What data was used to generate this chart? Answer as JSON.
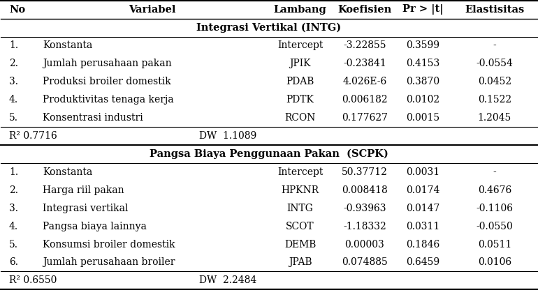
{
  "header": [
    "No",
    "Variabel",
    "Lambang",
    "Koefisien",
    "Pr > |t|",
    "Elastisitas"
  ],
  "section1_title": "Integrasi Vertikal (INTG)",
  "section1_rows": [
    [
      "1.",
      "Konstanta",
      "Intercept",
      "-3.22855",
      "0.3599",
      "-"
    ],
    [
      "2.",
      "Jumlah perusahaan pakan",
      "JPIK",
      "-0.23841",
      "0.4153",
      "-0.0554"
    ],
    [
      "3.",
      "Produksi broiler domestik",
      "PDAB",
      "4.026E-6",
      "0.3870",
      "0.0452"
    ],
    [
      "4.",
      "Produktivitas tenaga kerja",
      "PDTK",
      "0.006182",
      "0.0102",
      "0.1522"
    ],
    [
      "5.",
      "Konsentrasi industri",
      "RCON",
      "0.177627",
      "0.0015",
      "1.2045"
    ]
  ],
  "section1_footer": [
    "R² 0.7716",
    "DW  1.1089"
  ],
  "section2_title": "Pangsa Biaya Penggunaan Pakan  (SCPK)",
  "section2_rows": [
    [
      "1.",
      "Konstanta",
      "Intercept",
      "50.37712",
      "0.0031",
      "-"
    ],
    [
      "2.",
      "Harga riil pakan",
      "HPKNR",
      "0.008418",
      "0.0174",
      "0.4676"
    ],
    [
      "3.",
      "Integrasi vertikal",
      "INTG",
      "-0.93963",
      "0.0147",
      "-0.1106"
    ],
    [
      "4.",
      "Pangsa biaya lainnya",
      "SCOT",
      "-1.18332",
      "0.0311",
      "-0.0550"
    ],
    [
      "5.",
      "Konsumsi broiler domestik",
      "DEMB",
      "0.00003",
      "0.1846",
      "0.0511"
    ],
    [
      "6.",
      "Jumlah perusahaan broiler",
      "JPAB",
      "0.074885",
      "0.6459",
      "0.0106"
    ]
  ],
  "section2_footer": [
    "R² 0.6550",
    "DW  2.2484"
  ],
  "bg_color": "#ffffff",
  "font_size": 10.0,
  "header_font_size": 10.5
}
